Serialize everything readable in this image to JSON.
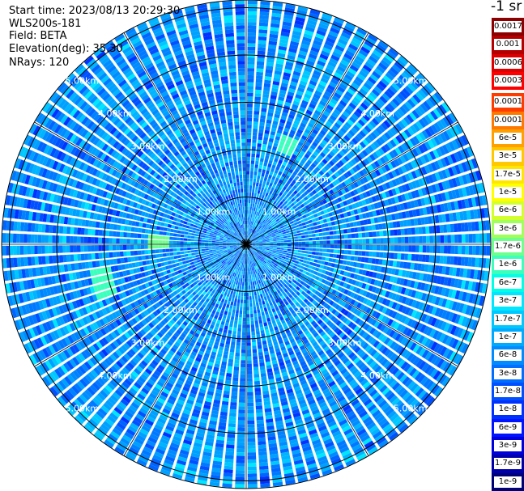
{
  "header": {
    "start_time": "Start time: 2023/08/13 20:29:30",
    "instrument": "WLS200s-181",
    "field": "Field: BETA",
    "elevation": "Elevation(deg): 35.30",
    "nrays": "NRays: 120"
  },
  "colorbar": {
    "title": "-1 sr",
    "labels": [
      "0.0017",
      "0.001",
      "0.0006",
      "0.0003",
      "0.00017",
      "0.0001",
      "6e-5",
      "3e-5",
      "1.7e-5",
      "1e-5",
      "6e-6",
      "3e-6",
      "1.7e-6",
      "1e-6",
      "6e-7",
      "3e-7",
      "1.7e-7",
      "1e-7",
      "6e-8",
      "3e-8",
      "1.7e-8",
      "1e-8",
      "6e-9",
      "3e-9",
      "1.7e-9",
      "1e-9"
    ],
    "colors": [
      "#8b0000",
      "#b40000",
      "#dc0000",
      "#ff0000",
      "#ff3c00",
      "#ff7800",
      "#ffa000",
      "#ffc800",
      "#ffe600",
      "#ffff00",
      "#d2ff2d",
      "#a0ff5a",
      "#6eff8c",
      "#3cffbe",
      "#00ffe6",
      "#00e6ff",
      "#00c8ff",
      "#00aaff",
      "#008cff",
      "#006eff",
      "#0050ff",
      "#0032ff",
      "#0014ff",
      "#0000dc",
      "#0000aa",
      "#000078"
    ]
  },
  "chart_data": {
    "type": "heatmap",
    "projection": "polar (PPI scan)",
    "range_rings_km": [
      1,
      2,
      3,
      4,
      5
    ],
    "ring_labels": [
      "1.00km",
      "2.00km",
      "3.00km",
      "4.00km",
      "5.00km"
    ],
    "nrays": 120,
    "dominant_value_range": "1e-8 to 1.7e-7",
    "enhanced_spots": [
      {
        "range_km": 1.8,
        "azimuth_deg": 272,
        "value_approx": "1.7e-6"
      },
      {
        "range_km": 3.1,
        "azimuth_deg": 255,
        "value_approx": "1e-6"
      },
      {
        "range_km": 2.2,
        "azimuth_deg": 22,
        "value_approx": "3e-7"
      }
    ]
  }
}
